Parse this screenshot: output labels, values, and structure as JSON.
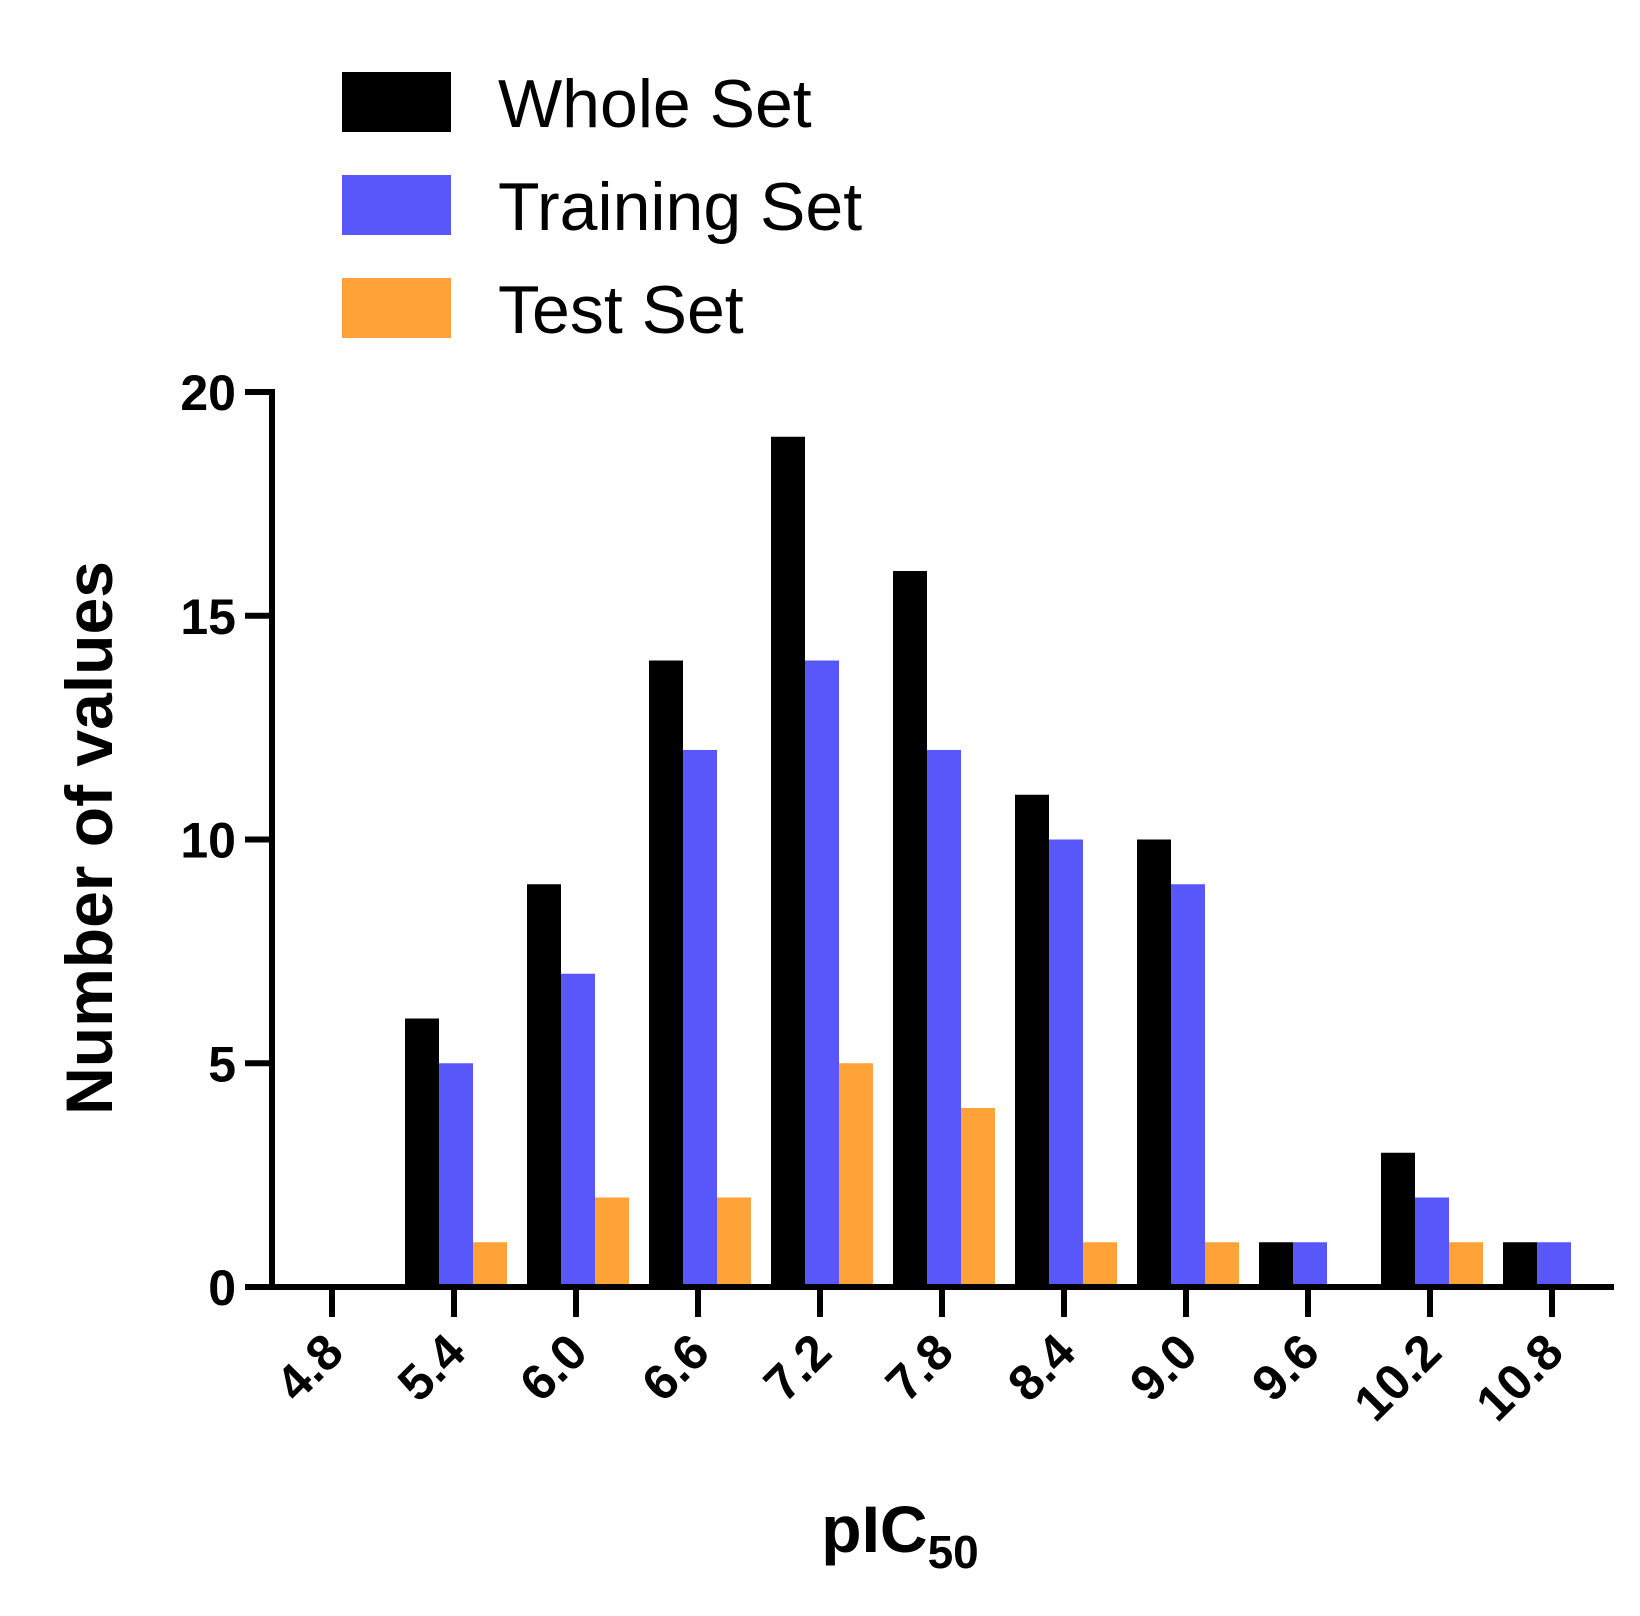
{
  "chart_data": {
    "type": "bar",
    "title": "",
    "xlabel": "pIC",
    "xlabel_subscript": "50",
    "ylabel": "Number of values",
    "ylim": [
      0,
      20
    ],
    "yticks": [
      "0",
      "5",
      "10",
      "15",
      "20"
    ],
    "categories": [
      "4.8",
      "5.4",
      "6.0",
      "6.6",
      "7.2",
      "7.8",
      "8.4",
      "9.0",
      "9.6",
      "10.2",
      "10.8"
    ],
    "series": [
      {
        "name": "Whole Set",
        "color": "#000000",
        "values": [
          0,
          6,
          9,
          14,
          19,
          16,
          11,
          10,
          1,
          3,
          1
        ]
      },
      {
        "name": "Training Set",
        "color": "#5757FA",
        "values": [
          0,
          5,
          7,
          12,
          14,
          12,
          10,
          9,
          1,
          2,
          1
        ]
      },
      {
        "name": "Test Set",
        "color": "#FFA238",
        "values": [
          0,
          1,
          2,
          2,
          5,
          4,
          1,
          1,
          0,
          1,
          0
        ]
      }
    ],
    "legend_position": "top-left"
  }
}
